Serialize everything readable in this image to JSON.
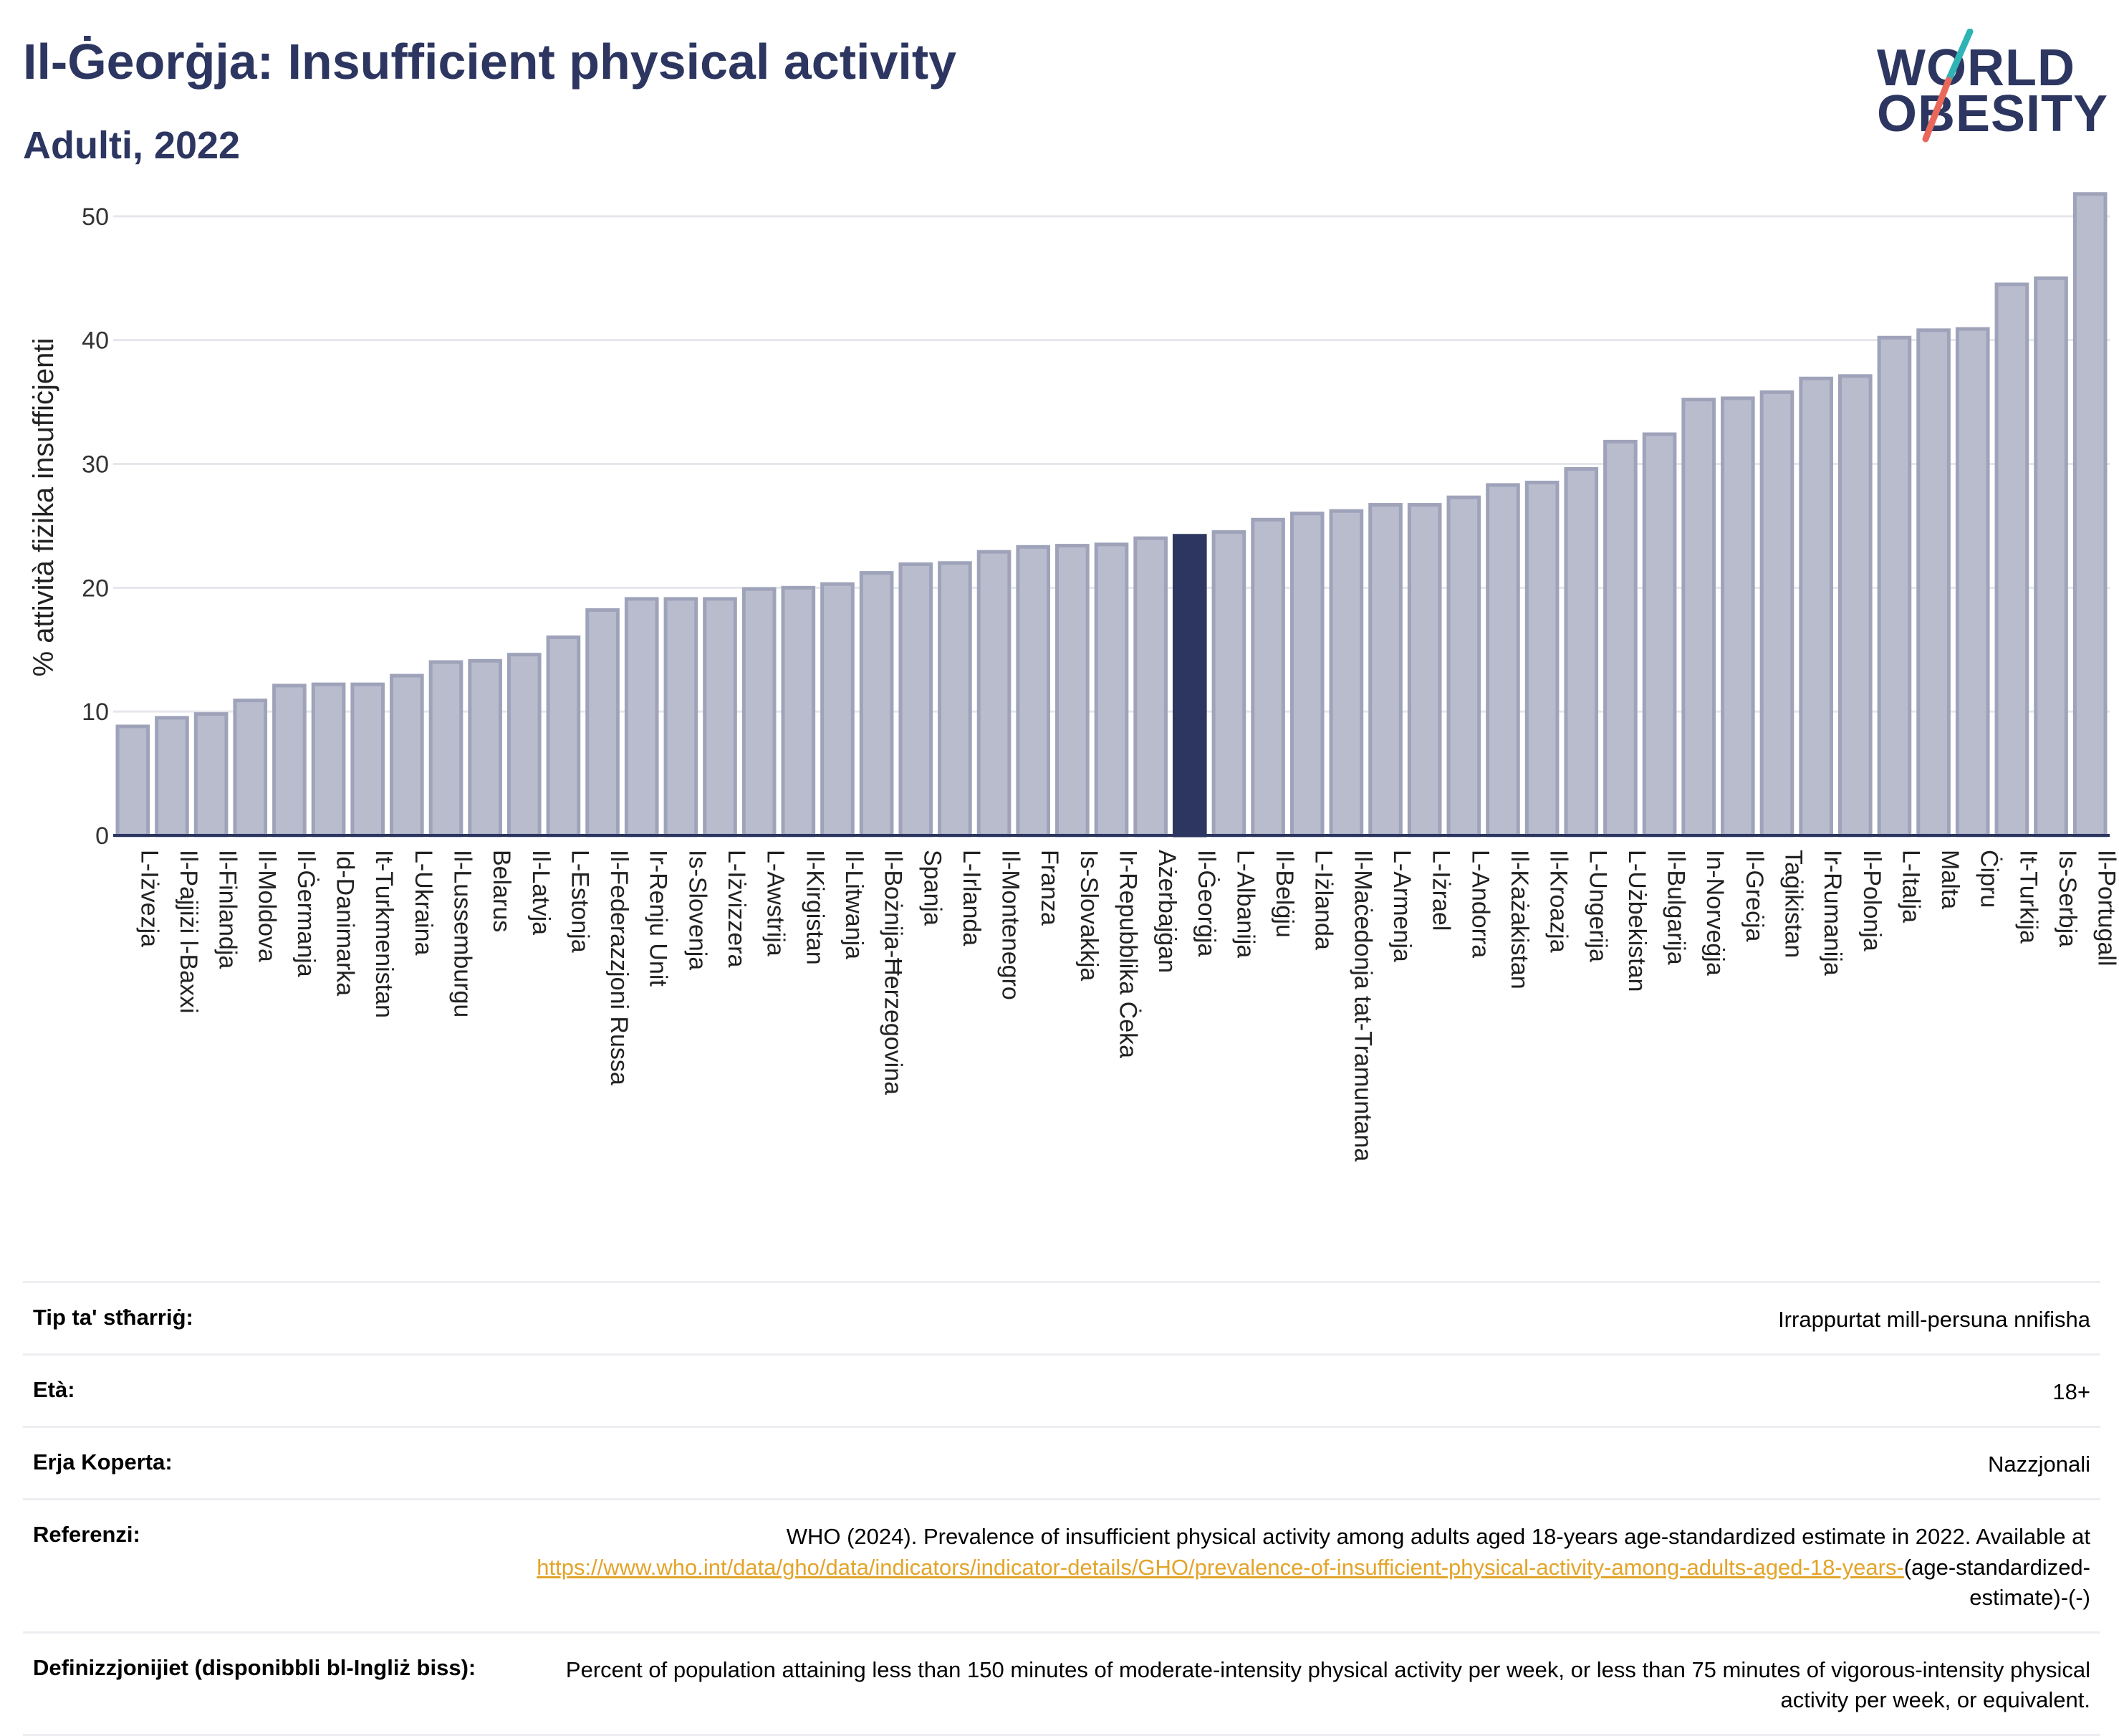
{
  "title": "Il-Ġeorġja: Insufficient physical activity",
  "subtitle": "Adulti, 2022",
  "logo": {
    "line1": "WORLD",
    "line2": "OBESITY",
    "colors": {
      "text": "#2c3660",
      "slash_top": "#2fb3b5",
      "slash_bottom": "#e8685a"
    }
  },
  "colors": {
    "bar": "#b9bccd",
    "bar_stroke": "#9ea3ba",
    "highlight": "#2c3660",
    "axis": "#2c3660",
    "grid": "#e6e7ec"
  },
  "chart_data": {
    "type": "bar",
    "ylabel": "% attività fiżika insuffiċjenti",
    "ylim": [
      0,
      53
    ],
    "yticks": [
      0,
      10,
      20,
      30,
      40,
      50
    ],
    "grid": true,
    "highlight": "Il-Ġeorġja",
    "categories": [
      "L-Iżvezja",
      "Il-Pajjiżi l-Baxxi",
      "Il-Finlandja",
      "Il-Moldova",
      "Il-Ġermanja",
      "Id-Danimarka",
      "It-Turkmenistan",
      "L-Ukraina",
      "Il-Lussemburgu",
      "Belarus",
      "Il-Latvja",
      "L-Estonja",
      "Il-Federazzjoni Russa",
      "Ir-Renju Unit",
      "Is-Slovenja",
      "L-Iżvizzera",
      "L-Awstrija",
      "Il-Kirgistan",
      "Il-Litwanja",
      "Il-Bożnija-Ħerzegovina",
      "Spanja",
      "L-Irlanda",
      "Il-Montenegro",
      "Franza",
      "Is-Slovakkja",
      "Ir-Repubblika Ċeka",
      "Ażerbajġan",
      "Il-Ġeorġja",
      "L-Albanija",
      "Il-Belġju",
      "L-Iżlanda",
      "Il-Maċedonja tat-Tramuntana",
      "L-Armenja",
      "L-Iżrael",
      "L-Andorra",
      "Il-Każakistan",
      "Il-Kroazja",
      "L-Ungerija",
      "L-Użbekistan",
      "Il-Bulgarija",
      "In-Norveġja",
      "Il-Greċja",
      "Taġikistan",
      "Ir-Rumanija",
      "Il-Polonja",
      "L-Italja",
      "Malta",
      "Ċipru",
      "It-Turkija",
      "Is-Serbja",
      "Il-Portugall"
    ],
    "values": [
      8.8,
      9.5,
      9.8,
      10.9,
      12.1,
      12.2,
      12.2,
      12.9,
      14.0,
      14.1,
      14.6,
      16.0,
      18.2,
      19.1,
      19.1,
      19.1,
      19.9,
      20.0,
      20.3,
      21.2,
      21.9,
      22.0,
      22.9,
      23.3,
      23.4,
      23.5,
      24.0,
      24.2,
      24.5,
      25.5,
      26.0,
      26.2,
      26.7,
      26.7,
      27.3,
      28.3,
      28.5,
      29.6,
      31.8,
      32.4,
      35.2,
      35.3,
      35.8,
      36.9,
      37.1,
      40.2,
      40.8,
      40.9,
      44.5,
      45.0,
      51.8
    ]
  },
  "info": [
    {
      "label": "Tip ta' stħarriġ:",
      "value": "Irrappurtat mill-persuna nnifisha"
    },
    {
      "label": "Età:",
      "value": "18+"
    },
    {
      "label": "Erja Koperta:",
      "value": "Nazzjonali"
    },
    {
      "label": "Referenzi:",
      "value": "WHO (2024). Prevalence of insufficient physical activity among adults aged 18-years age-standardized estimate in 2022. Available at",
      "link": "https://www.who.int/data/gho/data/indicators/indicator-details/GHO/prevalence-of-insufficient-physical-activity-among-adults-aged-18-years-",
      "suffix": "(age-standardized-estimate)-(-)"
    },
    {
      "label": "Definizzjonijiet (disponibbli bl-Ingliż biss):",
      "value": "Percent of population attaining less than 150 minutes of moderate-intensity physical activity per week, or less than 75 minutes of vigorous-intensity physical activity per week, or equivalent."
    }
  ]
}
